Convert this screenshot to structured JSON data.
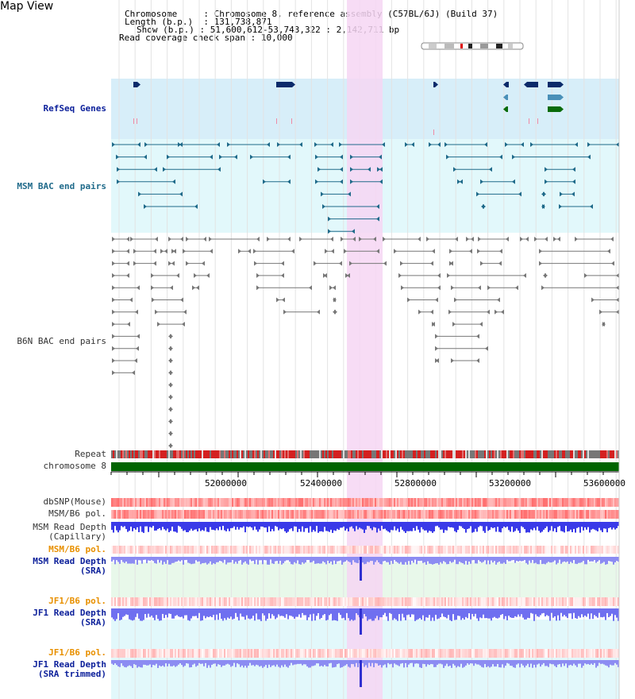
{
  "view": {
    "title": "Map View"
  },
  "info": {
    "chromosome_key": "Chromosome",
    "chromosome_val": "Chromosome 8, reference assembly (C57BL/6J) (Build 37)",
    "length_key": "Length (b.p.)",
    "length_val": "131,738,871",
    "show_key": "Show (b.p.)",
    "show_val": "51,600,612-53,743,322 : 2,142,711 bp",
    "span_key": "Read coverage check span",
    "span_val": "10,000"
  },
  "tracks": {
    "refseq": "RefSeq Genes",
    "msm_bac": "MSM BAC end pairs",
    "b6n_bac": "B6N BAC end pairs",
    "repeat": "Repeat",
    "chromosome": "chromosome 8",
    "dbsnp": "dbSNP(Mouse)",
    "msm_b6_pol_1": "MSM/B6 pol.",
    "msm_read_depth_cap": "MSM Read Depth\n(Capillary)",
    "msm_b6_pol_2": "MSM/B6 pol.",
    "msm_read_depth_sra": "MSM Read Depth\n(SRA)",
    "jf1_b6_pol_1": "JF1/B6 pol.",
    "jf1_read_depth_sra": "JF1 Read Depth\n(SRA)",
    "jf1_b6_pol_2": "JF1/B6 pol.",
    "jf1_read_depth_trim": "JF1 Read Depth\n(SRA trimmed)"
  },
  "axis": {
    "ticks": [
      "52000000",
      "52400000",
      "52800000",
      "53200000",
      "53600000"
    ]
  },
  "colors": {
    "highlight": "#f6d6f3",
    "refseq_bg": "#d7eef9",
    "msm_bac_bg": "#e2f8fb",
    "chromosome_bar": "#006400",
    "gene_dark": "#0b2a6a",
    "gene_mid": "#4a90b8",
    "gene_green": "#0a6b0a",
    "msm_line": "#1f6a8a",
    "b6n_line": "#777777",
    "depth_blue": "#3a3ae8",
    "depth_light": "#8c8cf2"
  }
}
